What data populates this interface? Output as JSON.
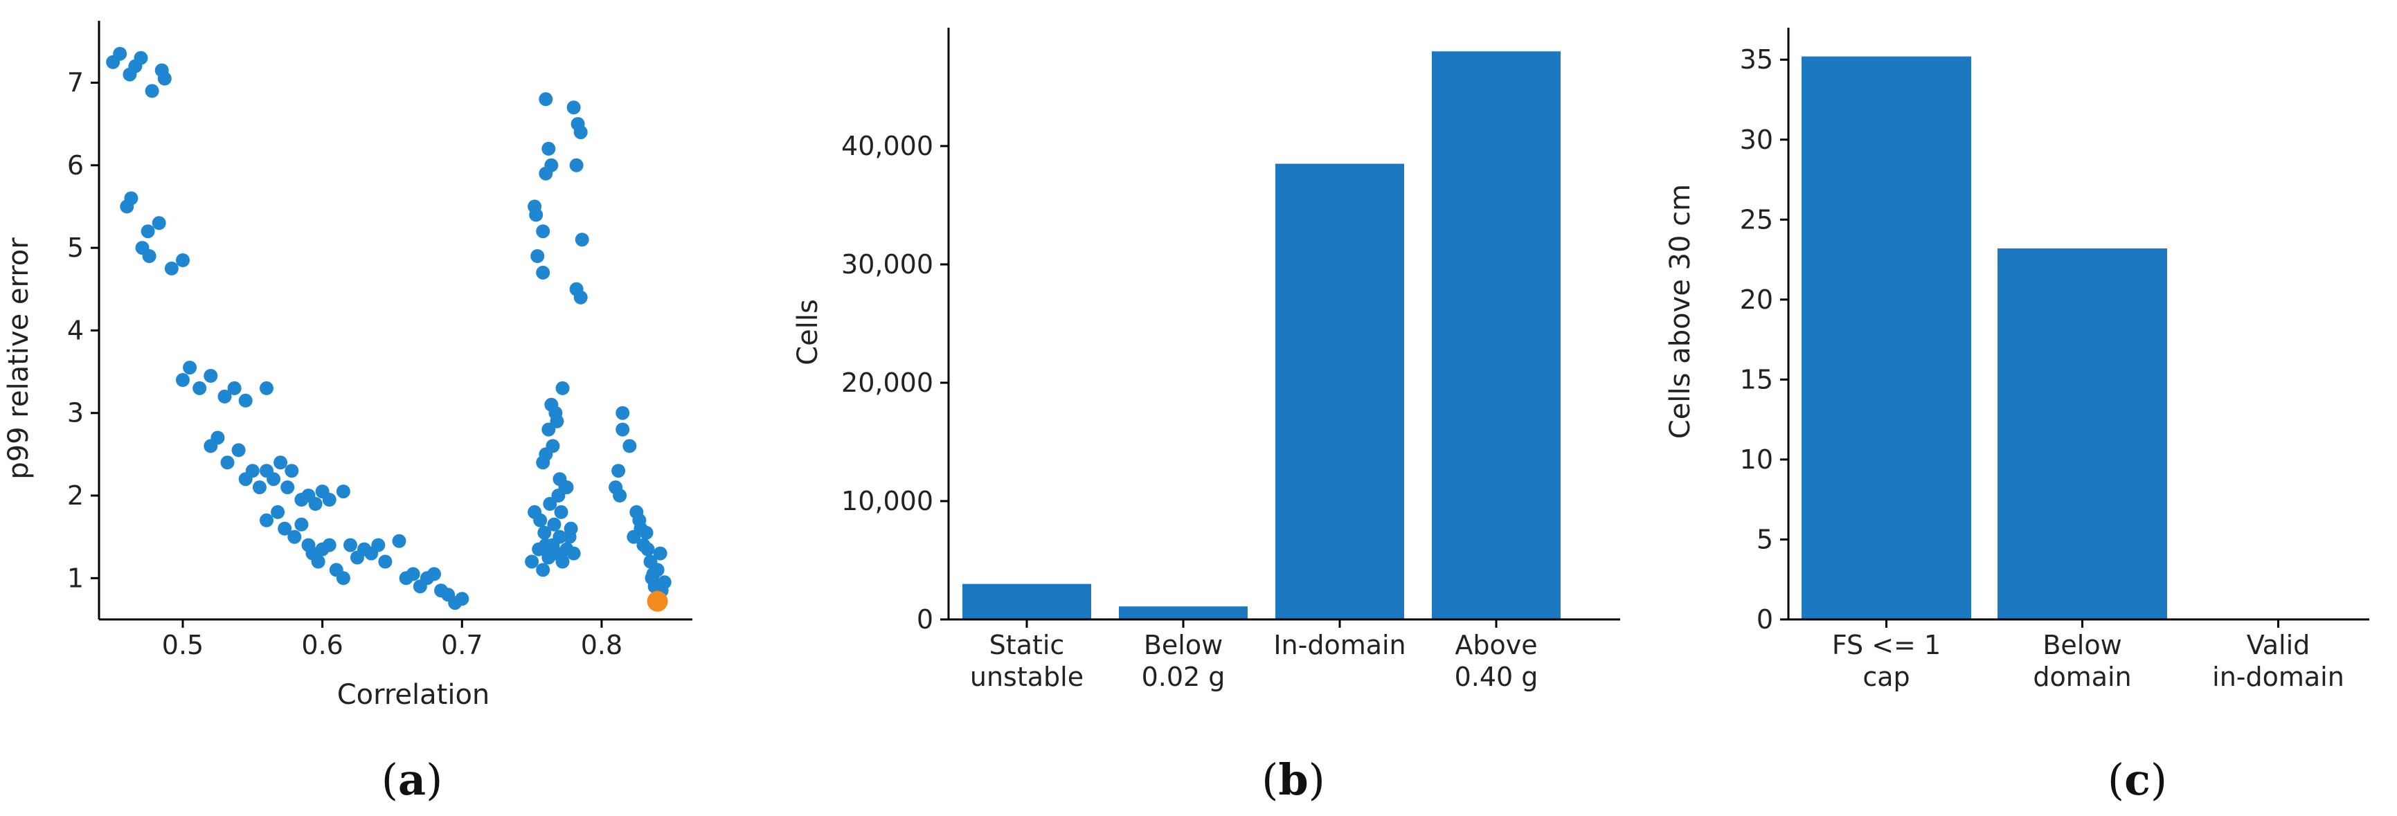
{
  "chart_data": [
    {
      "panel": "a",
      "type": "scatter",
      "xlabel": "Correlation",
      "ylabel": "p99 relative error",
      "xlim": [
        0.44,
        0.865
      ],
      "ylim": [
        0.5,
        7.75
      ],
      "xticks": [
        0.5,
        0.6,
        0.7,
        0.8
      ],
      "xtick_labels": [
        "0.5",
        "0.6",
        "0.7",
        "0.8"
      ],
      "yticks": [
        1,
        2,
        3,
        4,
        5,
        6,
        7
      ],
      "ytick_labels": [
        "1",
        "2",
        "3",
        "4",
        "5",
        "6",
        "7"
      ],
      "colors": {
        "points": "#1f86d1",
        "highlight": "#f28c1e"
      },
      "series": [
        {
          "x": [
            0.45,
            0.455,
            0.462,
            0.466,
            0.47,
            0.478,
            0.485,
            0.487,
            0.46,
            0.463,
            0.471,
            0.475,
            0.476,
            0.483,
            0.492,
            0.5,
            0.5,
            0.505,
            0.512,
            0.52,
            0.53,
            0.537,
            0.545,
            0.56,
            0.52,
            0.525,
            0.532,
            0.54,
            0.545,
            0.55,
            0.555,
            0.56,
            0.565,
            0.57,
            0.575,
            0.578,
            0.585,
            0.59,
            0.595,
            0.6,
            0.605,
            0.615,
            0.56,
            0.568,
            0.573,
            0.58,
            0.585,
            0.59,
            0.593,
            0.597,
            0.6,
            0.605,
            0.61,
            0.615,
            0.62,
            0.625,
            0.63,
            0.635,
            0.64,
            0.645,
            0.655,
            0.66,
            0.665,
            0.67,
            0.675,
            0.68,
            0.685,
            0.69,
            0.695,
            0.7,
            0.75,
            0.755,
            0.758,
            0.76,
            0.762,
            0.765,
            0.768,
            0.77,
            0.772,
            0.775,
            0.778,
            0.78,
            0.752,
            0.756,
            0.759,
            0.763,
            0.766,
            0.769,
            0.771,
            0.774,
            0.777,
            0.76,
            0.765,
            0.77,
            0.775,
            0.762,
            0.767,
            0.772,
            0.758,
            0.764,
            0.768,
            0.752,
            0.753,
            0.754,
            0.758,
            0.76,
            0.762,
            0.78,
            0.782,
            0.783,
            0.785,
            0.786,
            0.758,
            0.76,
            0.764,
            0.782,
            0.785,
            0.81,
            0.812,
            0.813,
            0.815,
            0.815,
            0.82,
            0.823,
            0.825,
            0.827,
            0.83,
            0.832,
            0.835,
            0.836,
            0.838,
            0.84,
            0.842,
            0.845,
            0.828,
            0.833,
            0.837,
            0.843
          ],
          "y": [
            7.25,
            7.35,
            7.1,
            7.2,
            7.3,
            6.9,
            7.15,
            7.05,
            5.5,
            5.6,
            5.0,
            5.2,
            4.9,
            5.3,
            4.75,
            4.85,
            3.4,
            3.55,
            3.3,
            3.45,
            3.2,
            3.3,
            3.15,
            3.3,
            2.6,
            2.7,
            2.4,
            2.55,
            2.2,
            2.3,
            2.1,
            2.3,
            2.2,
            2.4,
            2.1,
            2.3,
            1.95,
            2.0,
            1.9,
            2.05,
            1.95,
            2.05,
            1.7,
            1.8,
            1.6,
            1.5,
            1.65,
            1.4,
            1.3,
            1.2,
            1.35,
            1.4,
            1.1,
            1.0,
            1.4,
            1.25,
            1.35,
            1.3,
            1.4,
            1.2,
            1.45,
            1.0,
            1.05,
            0.9,
            1.0,
            1.05,
            0.85,
            0.8,
            0.7,
            0.75,
            1.2,
            1.35,
            1.1,
            1.4,
            1.25,
            1.4,
            1.3,
            1.5,
            1.2,
            1.35,
            1.6,
            1.3,
            1.8,
            1.7,
            1.55,
            1.9,
            1.65,
            2.0,
            1.8,
            2.1,
            1.5,
            2.5,
            2.6,
            2.2,
            2.1,
            2.8,
            3.0,
            3.3,
            2.4,
            3.1,
            2.9,
            5.5,
            5.4,
            4.9,
            4.7,
            6.8,
            6.2,
            6.7,
            6.0,
            6.5,
            6.4,
            5.1,
            5.2,
            5.9,
            6.0,
            4.5,
            4.4,
            2.1,
            2.3,
            2.0,
            2.8,
            3.0,
            2.6,
            1.5,
            1.8,
            1.7,
            1.4,
            1.55,
            1.2,
            1.0,
            0.9,
            1.1,
            1.3,
            0.95,
            1.6,
            1.35,
            1.05,
            0.85
          ]
        },
        {
          "x": [
            0.84
          ],
          "y": [
            0.72
          ],
          "highlight": true
        }
      ]
    },
    {
      "panel": "b",
      "type": "bar",
      "xlabel": "",
      "ylabel": "Cells",
      "ylim": [
        0,
        50000
      ],
      "yticks": [
        0,
        10000,
        20000,
        30000,
        40000
      ],
      "ytick_labels": [
        "0",
        "10,000",
        "20,000",
        "30,000",
        "40,000"
      ],
      "categories": [
        [
          "Static",
          "unstable"
        ],
        [
          "Below",
          "0.02 g"
        ],
        [
          "In-domain"
        ],
        [
          "Above",
          "0.40 g"
        ]
      ],
      "values": [
        3000,
        1100,
        38500,
        48000
      ],
      "color": "#1b78c1"
    },
    {
      "panel": "c",
      "type": "bar",
      "xlabel": "",
      "ylabel": "Cells above 30 cm",
      "ylim": [
        0,
        37
      ],
      "yticks": [
        0,
        5,
        10,
        15,
        20,
        25,
        30,
        35
      ],
      "ytick_labels": [
        "0",
        "5",
        "10",
        "15",
        "20",
        "25",
        "30",
        "35"
      ],
      "categories": [
        [
          "FS <= 1",
          "cap"
        ],
        [
          "Below",
          "domain"
        ],
        [
          "Valid",
          "in-domain"
        ]
      ],
      "values": [
        35.2,
        23.2,
        0
      ],
      "color": "#1b78c1"
    }
  ],
  "panel_labels": [
    {
      "open": "(",
      "letter": "a",
      "close": ")"
    },
    {
      "open": "(",
      "letter": "b",
      "close": ")"
    },
    {
      "open": "(",
      "letter": "c",
      "close": ")"
    }
  ]
}
